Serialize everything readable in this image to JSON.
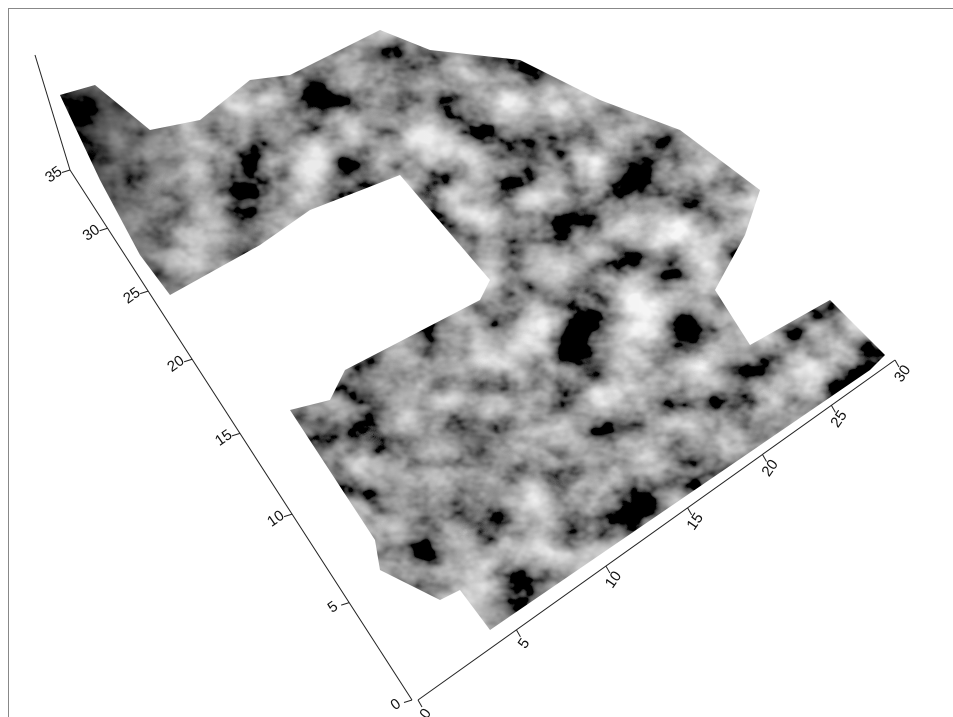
{
  "chart_data": {
    "type": "surface3d",
    "xlim": [
      0,
      30
    ],
    "xticks": [
      0,
      5,
      10,
      15,
      20,
      25,
      30
    ],
    "ylim": [
      0,
      35
    ],
    "yticks": [
      0,
      5,
      10,
      15,
      20,
      25,
      30,
      35
    ]
  }
}
